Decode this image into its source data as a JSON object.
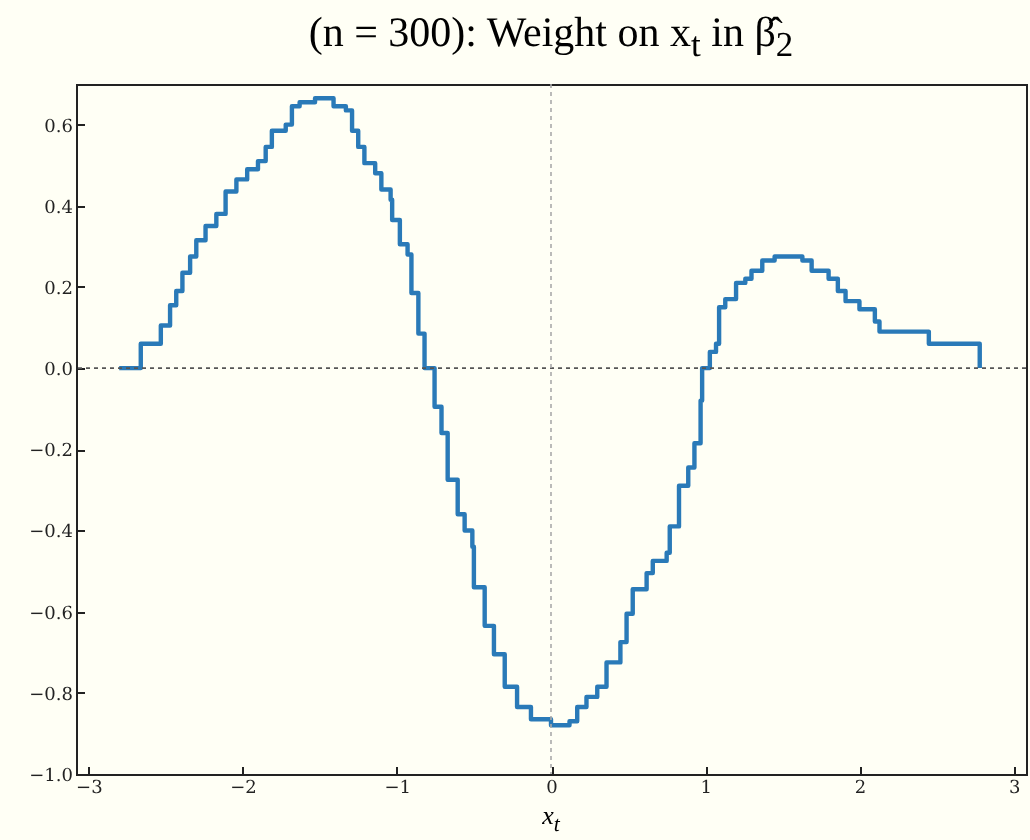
{
  "chart_data": {
    "type": "step",
    "title": "(n = 300): Weight on x$_{t}$ in β̂$_{2}$",
    "xlabel": "x$_{t}$",
    "x": [
      -2.8,
      -2.66,
      -2.53,
      -2.47,
      -2.43,
      -2.39,
      -2.34,
      -2.3,
      -2.24,
      -2.17,
      -2.11,
      -2.04,
      -1.97,
      -1.9,
      -1.85,
      -1.81,
      -1.72,
      -1.68,
      -1.63,
      -1.53,
      -1.41,
      -1.33,
      -1.29,
      -1.25,
      -1.21,
      -1.14,
      -1.1,
      -1.04,
      -1.03,
      -0.98,
      -0.93,
      -0.905,
      -0.86,
      -0.82,
      -0.755,
      -0.71,
      -0.67,
      -0.605,
      -0.56,
      -0.51,
      -0.5,
      -0.43,
      -0.37,
      -0.3,
      -0.22,
      -0.13,
      0.0,
      0.12,
      0.17,
      0.23,
      0.3,
      0.36,
      0.45,
      0.49,
      0.53,
      0.62,
      0.66,
      0.75,
      0.77,
      0.83,
      0.89,
      0.93,
      0.97,
      0.98,
      1.03,
      1.07,
      1.09,
      1.13,
      1.2,
      1.26,
      1.3,
      1.37,
      1.45,
      1.63,
      1.69,
      1.8,
      1.86,
      1.91,
      2.0,
      2.1,
      2.13,
      2.45,
      2.78
    ],
    "series": [
      {
        "color": "#2a7ab8",
        "values": [
          0,
          0.06,
          0.105,
          0.155,
          0.19,
          0.235,
          0.275,
          0.315,
          0.35,
          0.38,
          0.435,
          0.465,
          0.49,
          0.51,
          0.545,
          0.585,
          0.6,
          0.645,
          0.655,
          0.665,
          0.645,
          0.635,
          0.585,
          0.545,
          0.505,
          0.48,
          0.44,
          0.415,
          0.365,
          0.305,
          0.28,
          0.185,
          0.085,
          0,
          -0.095,
          -0.16,
          -0.275,
          -0.36,
          -0.4,
          -0.44,
          -0.54,
          -0.635,
          -0.705,
          -0.785,
          -0.835,
          -0.865,
          -0.88,
          -0.87,
          -0.835,
          -0.81,
          -0.785,
          -0.725,
          -0.675,
          -0.605,
          -0.545,
          -0.505,
          -0.475,
          -0.455,
          -0.39,
          -0.29,
          -0.245,
          -0.185,
          -0.08,
          0,
          0.04,
          0.06,
          0.15,
          0.17,
          0.21,
          0.22,
          0.24,
          0.265,
          0.275,
          0.265,
          0.24,
          0.22,
          0.19,
          0.165,
          0.145,
          0.115,
          0.09,
          0.06,
          0
        ]
      }
    ],
    "xlim": [
      -3.08,
      3.08
    ],
    "ylim": [
      -1.0,
      0.7
    ],
    "xticks": [
      -3,
      -2,
      -1,
      0,
      1,
      2,
      3
    ],
    "yticks": [
      {
        "value": -1,
        "label": "−1.0"
      },
      -0.8,
      -0.6,
      -0.4,
      -0.2,
      {
        "value": 0,
        "label": "0.0"
      },
      0.2,
      0.4,
      0.6
    ],
    "ref_lines": [
      {
        "axis": "y",
        "value": 0,
        "color": "#555555",
        "line_style": "dotted"
      },
      {
        "axis": "x",
        "value": 0,
        "color": "#aaaaaa",
        "line_style": "dotted"
      }
    ],
    "line_style": "solid",
    "marker": "none"
  }
}
